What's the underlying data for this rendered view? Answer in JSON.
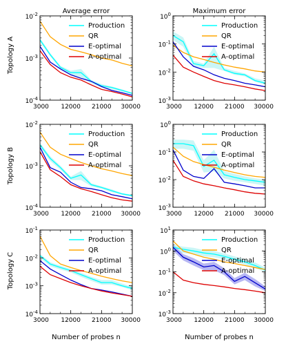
{
  "figure": {
    "column_titles": [
      "Average error",
      "Maximum error"
    ],
    "row_labels": [
      "Topology A",
      "Topology B",
      "Topology C"
    ],
    "xlabel": "Number of probes n",
    "legend": [
      "Production",
      "QR",
      "E-optimal",
      "A-optimal"
    ]
  },
  "colors": {
    "Production": "#00ffff",
    "Production_band": "#b3f2f2",
    "QR": "#ffa500",
    "E-optimal": "#0000cc",
    "E-optimal_band": "#9999ee",
    "A-optimal": "#dd0000"
  },
  "chart_data": [
    {
      "type": "line",
      "row": 0,
      "col": 0,
      "title": "Average error",
      "ylabel": "Topology A",
      "xlabel": "",
      "yscale": "log",
      "ylim": [
        0.0001,
        0.01
      ],
      "xlim": [
        3000,
        30000
      ],
      "xticks": [
        "3000",
        "12000",
        "21000",
        "30000"
      ],
      "yticks": [
        "10^-4",
        "10^-3",
        "10^-2"
      ],
      "legend_position": "upper-right",
      "grid": false,
      "x": [
        3000,
        6000,
        9000,
        12000,
        15000,
        18000,
        21000,
        24000,
        27000,
        30000
      ],
      "series": [
        {
          "name": "Production",
          "values": [
            0.0027,
            0.0012,
            0.0006,
            0.00045,
            0.00045,
            0.00028,
            0.00022,
            0.0002,
            0.00017,
            0.000145
          ],
          "band_lo": [
            0.0024,
            0.0011,
            0.00055,
            0.0004,
            0.00035,
            0.00025,
            0.0002,
            0.00018,
            0.00016,
            0.00014
          ],
          "band_hi": [
            0.003,
            0.0013,
            0.00065,
            0.0005,
            0.00055,
            0.0003,
            0.00024,
            0.00021,
            0.00018,
            0.00015
          ]
        },
        {
          "name": "QR",
          "values": [
            0.0075,
            0.0032,
            0.0021,
            0.0016,
            0.0014,
            0.0012,
            0.001,
            0.0009,
            0.00075,
            0.00065
          ]
        },
        {
          "name": "E-optimal",
          "values": [
            0.0019,
            0.0008,
            0.00055,
            0.0004,
            0.00033,
            0.00028,
            0.00021,
            0.00017,
            0.00015,
            0.00013
          ]
        },
        {
          "name": "A-optimal",
          "values": [
            0.0015,
            0.0007,
            0.00045,
            0.00035,
            0.0003,
            0.00023,
            0.00018,
            0.00016,
            0.00014,
            0.00012
          ]
        }
      ]
    },
    {
      "type": "line",
      "row": 0,
      "col": 1,
      "title": "Maximum error",
      "ylabel": "",
      "xlabel": "",
      "yscale": "log",
      "ylim": [
        0.001,
        1
      ],
      "xlim": [
        3000,
        30000
      ],
      "xticks": [
        "3000",
        "12000",
        "21000",
        "30000"
      ],
      "yticks": [
        "10^-3",
        "10^-2",
        "10^-1",
        "10^0"
      ],
      "legend_position": "upper-right",
      "grid": false,
      "x": [
        3000,
        6000,
        9000,
        12000,
        15000,
        18000,
        21000,
        24000,
        27000,
        30000
      ],
      "series": [
        {
          "name": "Production",
          "values": [
            0.2,
            0.12,
            0.02,
            0.017,
            0.045,
            0.012,
            0.009,
            0.008,
            0.005,
            0.004
          ],
          "band_lo": [
            0.14,
            0.08,
            0.016,
            0.014,
            0.014,
            0.011,
            0.008,
            0.007,
            0.0045,
            0.0035
          ],
          "band_hi": [
            0.28,
            0.17,
            0.025,
            0.02,
            0.08,
            0.014,
            0.011,
            0.009,
            0.006,
            0.005
          ]
        },
        {
          "name": "QR",
          "values": [
            0.09,
            0.05,
            0.035,
            0.028,
            0.022,
            0.018,
            0.015,
            0.013,
            0.011,
            0.01
          ]
        },
        {
          "name": "E-optimal",
          "values": [
            0.12,
            0.035,
            0.016,
            0.012,
            0.008,
            0.006,
            0.005,
            0.004,
            0.0035,
            0.003
          ]
        },
        {
          "name": "A-optimal",
          "values": [
            0.04,
            0.015,
            0.01,
            0.007,
            0.005,
            0.004,
            0.0035,
            0.003,
            0.0025,
            0.0022
          ]
        }
      ]
    },
    {
      "type": "line",
      "row": 1,
      "col": 0,
      "title": "",
      "ylabel": "Topology B",
      "xlabel": "",
      "yscale": "log",
      "ylim": [
        0.0001,
        0.01
      ],
      "xlim": [
        3000,
        30000
      ],
      "xticks": [
        "3000",
        "12000",
        "21000",
        "30000"
      ],
      "yticks": [
        "10^-4",
        "10^-3",
        "10^-2"
      ],
      "legend_position": "upper-right",
      "grid": false,
      "x": [
        3000,
        6000,
        9000,
        12000,
        15000,
        18000,
        21000,
        24000,
        27000,
        30000
      ],
      "series": [
        {
          "name": "Production",
          "values": [
            0.0032,
            0.0015,
            0.0009,
            0.0005,
            0.0006,
            0.00035,
            0.0003,
            0.00025,
            0.00021,
            0.00019
          ],
          "band_lo": [
            0.0028,
            0.0013,
            0.0008,
            0.00045,
            0.00045,
            0.00032,
            0.00028,
            0.00023,
            0.0002,
            0.00018
          ],
          "band_hi": [
            0.0036,
            0.0017,
            0.001,
            0.00055,
            0.00075,
            0.00038,
            0.00032,
            0.00027,
            0.00022,
            0.0002
          ]
        },
        {
          "name": "QR",
          "values": [
            0.0065,
            0.0028,
            0.0019,
            0.0015,
            0.0012,
            0.001,
            0.00085,
            0.00075,
            0.00065,
            0.00058
          ]
        },
        {
          "name": "E-optimal",
          "values": [
            0.0028,
            0.0009,
            0.0007,
            0.0004,
            0.0003,
            0.00028,
            0.00025,
            0.0002,
            0.00018,
            0.00016
          ]
        },
        {
          "name": "A-optimal",
          "values": [
            0.0022,
            0.0008,
            0.00055,
            0.00035,
            0.00028,
            0.00024,
            0.0002,
            0.00017,
            0.00015,
            0.00014
          ]
        }
      ]
    },
    {
      "type": "line",
      "row": 1,
      "col": 1,
      "title": "",
      "ylabel": "",
      "xlabel": "",
      "yscale": "log",
      "ylim": [
        0.001,
        1
      ],
      "xlim": [
        3000,
        30000
      ],
      "xticks": [
        "3000",
        "12000",
        "21000",
        "30000"
      ],
      "yticks": [
        "10^-3",
        "10^-2",
        "10^-1",
        "10^0"
      ],
      "legend_position": "upper-right",
      "grid": false,
      "x": [
        3000,
        6000,
        9000,
        12000,
        15000,
        18000,
        21000,
        24000,
        27000,
        30000
      ],
      "series": [
        {
          "name": "Production",
          "values": [
            0.2,
            0.2,
            0.17,
            0.03,
            0.05,
            0.015,
            0.012,
            0.01,
            0.009,
            0.008
          ],
          "band_lo": [
            0.13,
            0.13,
            0.11,
            0.018,
            0.02,
            0.011,
            0.009,
            0.008,
            0.007,
            0.006
          ],
          "band_hi": [
            0.28,
            0.28,
            0.26,
            0.05,
            0.12,
            0.02,
            0.016,
            0.013,
            0.011,
            0.01
          ]
        },
        {
          "name": "QR",
          "values": [
            0.15,
            0.07,
            0.045,
            0.035,
            0.028,
            0.022,
            0.018,
            0.015,
            0.013,
            0.012
          ]
        },
        {
          "name": "E-optimal",
          "values": [
            0.12,
            0.022,
            0.013,
            0.011,
            0.025,
            0.008,
            0.007,
            0.006,
            0.005,
            0.005
          ]
        },
        {
          "name": "A-optimal",
          "values": [
            0.05,
            0.013,
            0.009,
            0.007,
            0.006,
            0.005,
            0.0043,
            0.0036,
            0.0032,
            0.003
          ]
        }
      ]
    },
    {
      "type": "line",
      "row": 2,
      "col": 0,
      "title": "",
      "ylabel": "Topology C",
      "xlabel": "Number of probes n",
      "yscale": "log",
      "ylim": [
        0.0001,
        0.1
      ],
      "xlim": [
        3000,
        30000
      ],
      "xticks": [
        "3000",
        "12000",
        "21000",
        "30000"
      ],
      "yticks": [
        "10^-4",
        "10^-3",
        "10^-2",
        "10^-1"
      ],
      "legend_position": "upper-right",
      "grid": false,
      "x": [
        3000,
        6000,
        9000,
        12000,
        15000,
        18000,
        21000,
        24000,
        27000,
        30000
      ],
      "series": [
        {
          "name": "Production",
          "values": [
            0.012,
            0.006,
            0.0045,
            0.0035,
            0.0025,
            0.0018,
            0.0013,
            0.0013,
            0.001,
            0.0008
          ],
          "band_lo": [
            0.01,
            0.005,
            0.0038,
            0.003,
            0.0021,
            0.0015,
            0.0011,
            0.0011,
            0.0009,
            0.0007
          ],
          "band_hi": [
            0.014,
            0.007,
            0.0052,
            0.004,
            0.0029,
            0.0021,
            0.0016,
            0.0016,
            0.0012,
            0.0009
          ]
        },
        {
          "name": "QR",
          "values": [
            0.06,
            0.012,
            0.006,
            0.0045,
            0.0035,
            0.0028,
            0.0022,
            0.0018,
            0.0015,
            0.0013
          ]
        },
        {
          "name": "E-optimal",
          "values": [
            0.008,
            0.004,
            0.0025,
            0.0016,
            0.0011,
            0.0008,
            0.0007,
            0.0006,
            0.0005,
            0.00042
          ]
        },
        {
          "name": "A-optimal",
          "values": [
            0.005,
            0.0025,
            0.0018,
            0.0013,
            0.001,
            0.0008,
            0.00065,
            0.00055,
            0.00048,
            0.00042
          ]
        }
      ]
    },
    {
      "type": "line",
      "row": 2,
      "col": 1,
      "title": "",
      "ylabel": "",
      "xlabel": "Number of probes n",
      "yscale": "log",
      "ylim": [
        0.001,
        10
      ],
      "xlim": [
        3000,
        30000
      ],
      "xticks": [
        "3000",
        "12000",
        "21000",
        "30000"
      ],
      "yticks": [
        "10^-3",
        "10^-2",
        "10^-1",
        "10^0",
        "10^1"
      ],
      "legend_position": "upper-right",
      "grid": false,
      "x": [
        3000,
        6000,
        9000,
        12000,
        15000,
        18000,
        21000,
        24000,
        27000,
        30000
      ],
      "series": [
        {
          "name": "Production",
          "values": [
            1.5,
            1.2,
            1.0,
            0.8,
            0.7,
            0.55,
            0.4,
            0.3,
            0.2,
            0.12
          ],
          "band_lo": [
            1.0,
            0.8,
            0.7,
            0.55,
            0.5,
            0.4,
            0.3,
            0.22,
            0.15,
            0.1
          ],
          "band_hi": [
            2.0,
            1.6,
            1.4,
            1.1,
            1.0,
            0.75,
            0.55,
            0.4,
            0.28,
            0.16
          ]
        },
        {
          "name": "QR",
          "values": [
            3.0,
            1.0,
            0.7,
            0.5,
            0.4,
            0.3,
            0.25,
            0.2,
            0.16,
            0.13
          ]
        },
        {
          "name": "E-optimal",
          "values": [
            1.5,
            0.5,
            0.3,
            0.17,
            0.2,
            0.1,
            0.035,
            0.06,
            0.03,
            0.015
          ],
          "band_lo": [
            1.0,
            0.35,
            0.2,
            0.12,
            0.12,
            0.07,
            0.025,
            0.04,
            0.02,
            0.012
          ],
          "band_hi": [
            2.0,
            0.7,
            0.45,
            0.25,
            0.3,
            0.15,
            0.05,
            0.09,
            0.045,
            0.02
          ]
        },
        {
          "name": "A-optimal",
          "values": [
            0.1,
            0.04,
            0.03,
            0.025,
            0.022,
            0.019,
            0.016,
            0.014,
            0.012,
            0.01
          ]
        }
      ]
    }
  ]
}
